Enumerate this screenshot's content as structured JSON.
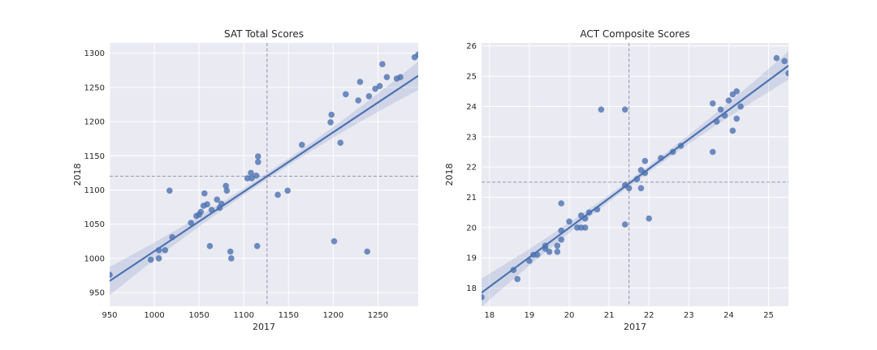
{
  "chart_data": [
    {
      "type": "scatter",
      "title": "SAT Total Scores",
      "xlabel": "2017",
      "ylabel": "2018",
      "xlim": [
        950,
        1295
      ],
      "ylim": [
        930,
        1315
      ],
      "xticks": [
        950,
        1000,
        1050,
        1100,
        1150,
        1200,
        1250
      ],
      "yticks": [
        950,
        1000,
        1050,
        1100,
        1150,
        1200,
        1250,
        1300
      ],
      "grid": true,
      "reference_lines": {
        "x": 1126,
        "y": 1120
      },
      "regression_line": {
        "x": [
          950,
          1295
        ],
        "y": [
          967,
          1267
        ]
      },
      "points_color": "#4c72b0",
      "line_color": "#4c72b0",
      "band_color": "#4c72b0",
      "points": [
        [
          950,
          976
        ],
        [
          996,
          998
        ],
        [
          1005,
          1000
        ],
        [
          1005,
          1012
        ],
        [
          1012,
          1012
        ],
        [
          1017,
          1099
        ],
        [
          1020,
          1031
        ],
        [
          1041,
          1052
        ],
        [
          1047,
          1062
        ],
        [
          1050,
          1064
        ],
        [
          1052,
          1068
        ],
        [
          1055,
          1077
        ],
        [
          1056,
          1095
        ],
        [
          1059,
          1079
        ],
        [
          1062,
          1018
        ],
        [
          1064,
          1071
        ],
        [
          1070,
          1086
        ],
        [
          1073,
          1074
        ],
        [
          1075,
          1080
        ],
        [
          1080,
          1106
        ],
        [
          1081,
          1099
        ],
        [
          1085,
          1010
        ],
        [
          1086,
          1000
        ],
        [
          1104,
          1117
        ],
        [
          1108,
          1125
        ],
        [
          1109,
          1117
        ],
        [
          1114,
          1121
        ],
        [
          1115,
          1018
        ],
        [
          1116,
          1149
        ],
        [
          1116,
          1141
        ],
        [
          1138,
          1093
        ],
        [
          1149,
          1099
        ],
        [
          1165,
          1166
        ],
        [
          1197,
          1199
        ],
        [
          1198,
          1210
        ],
        [
          1201,
          1025
        ],
        [
          1208,
          1169
        ],
        [
          1214,
          1240
        ],
        [
          1228,
          1231
        ],
        [
          1230,
          1258
        ],
        [
          1238,
          1010
        ],
        [
          1240,
          1237
        ],
        [
          1247,
          1248
        ],
        [
          1252,
          1252
        ],
        [
          1255,
          1284
        ],
        [
          1260,
          1265
        ],
        [
          1271,
          1263
        ],
        [
          1275,
          1265
        ],
        [
          1291,
          1294
        ],
        [
          1295,
          1298
        ]
      ]
    },
    {
      "type": "scatter",
      "title": "ACT Composite Scores",
      "xlabel": "2017",
      "ylabel": "2018",
      "xlim": [
        17.8,
        25.5
      ],
      "ylim": [
        17.4,
        26.1
      ],
      "xticks": [
        18,
        19,
        20,
        21,
        22,
        23,
        24,
        25
      ],
      "yticks": [
        18,
        19,
        20,
        21,
        22,
        23,
        24,
        25,
        26
      ],
      "grid": true,
      "reference_lines": {
        "x": 21.5,
        "y": 21.5
      },
      "regression_line": {
        "x": [
          17.8,
          25.5
        ],
        "y": [
          17.85,
          25.35
        ]
      },
      "points_color": "#4c72b0",
      "line_color": "#4c72b0",
      "band_color": "#4c72b0",
      "points": [
        [
          17.8,
          17.7
        ],
        [
          18.6,
          18.6
        ],
        [
          18.7,
          18.3
        ],
        [
          19.0,
          18.9
        ],
        [
          19.1,
          19.1
        ],
        [
          19.2,
          19.1
        ],
        [
          19.4,
          19.3
        ],
        [
          19.4,
          19.4
        ],
        [
          19.5,
          19.2
        ],
        [
          19.7,
          19.2
        ],
        [
          19.7,
          19.4
        ],
        [
          19.8,
          19.6
        ],
        [
          19.8,
          19.9
        ],
        [
          19.8,
          20.8
        ],
        [
          20.0,
          20.2
        ],
        [
          20.2,
          20.0
        ],
        [
          20.3,
          20.0
        ],
        [
          20.3,
          20.4
        ],
        [
          20.4,
          20.0
        ],
        [
          20.4,
          20.3
        ],
        [
          20.5,
          20.5
        ],
        [
          20.7,
          20.6
        ],
        [
          20.8,
          23.9
        ],
        [
          21.4,
          23.9
        ],
        [
          21.4,
          21.4
        ],
        [
          21.4,
          20.1
        ],
        [
          21.5,
          21.3
        ],
        [
          21.7,
          21.6
        ],
        [
          21.8,
          21.9
        ],
        [
          21.8,
          21.3
        ],
        [
          21.9,
          21.8
        ],
        [
          21.9,
          22.2
        ],
        [
          22.0,
          20.3
        ],
        [
          22.3,
          22.3
        ],
        [
          22.6,
          22.5
        ],
        [
          22.8,
          22.7
        ],
        [
          23.6,
          24.1
        ],
        [
          23.6,
          22.5
        ],
        [
          23.7,
          23.5
        ],
        [
          23.8,
          23.9
        ],
        [
          23.9,
          23.7
        ],
        [
          24.0,
          24.2
        ],
        [
          24.1,
          23.2
        ],
        [
          24.1,
          24.4
        ],
        [
          24.2,
          24.5
        ],
        [
          24.2,
          23.6
        ],
        [
          24.3,
          24.0
        ],
        [
          25.2,
          25.6
        ],
        [
          25.4,
          25.5
        ],
        [
          25.5,
          25.1
        ]
      ]
    }
  ]
}
